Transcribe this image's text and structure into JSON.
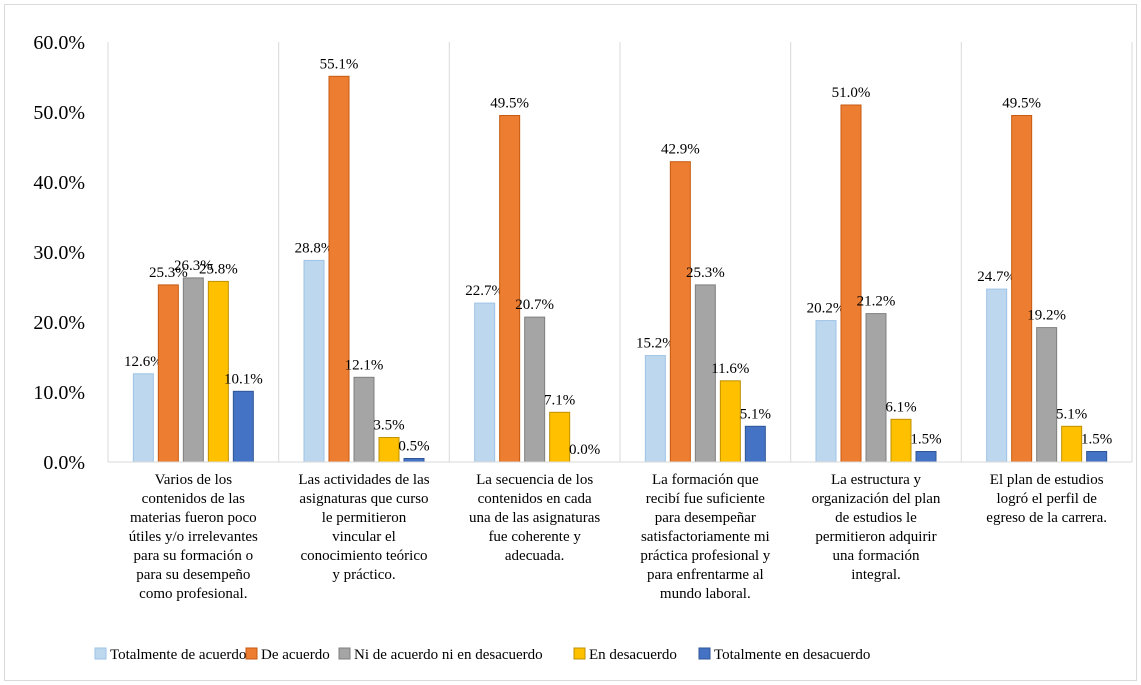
{
  "chart_data": {
    "type": "bar",
    "categories": [
      [
        "Varios de  los",
        "contenidos de las",
        "materias fueron poco",
        "útiles y/o irrelevantes",
        "para su formación o",
        "para su desempeño",
        "como profesional."
      ],
      [
        "Las actividades de las",
        "asignaturas que curso",
        "le permitieron",
        "vincular el",
        "conocimiento teórico",
        "y práctico."
      ],
      [
        "La secuencia de los",
        "contenidos en cada",
        "una de las asignaturas",
        "fue coherente y",
        "adecuada."
      ],
      [
        "La formación que",
        "recibí fue suficiente",
        "para desempeñar",
        "satisfactoriamente mi",
        "práctica profesional y",
        "para enfrentarme al",
        "mundo laboral."
      ],
      [
        "La estructura y",
        "organización del plan",
        "de estudios le",
        "permitieron adquirir",
        "una formación",
        "integral."
      ],
      [
        "El plan de estudios",
        "logró el perfil de",
        "egreso de la carrera."
      ]
    ],
    "series": [
      {
        "name": "Totalmente de acuerdo",
        "color": "#bdd7ee",
        "stroke": "#9dc3e6",
        "values": [
          12.6,
          28.8,
          22.7,
          15.2,
          20.2,
          24.7
        ]
      },
      {
        "name": "De acuerdo",
        "color": "#ed7d31",
        "stroke": "#c55a11",
        "values": [
          25.3,
          55.1,
          49.5,
          42.9,
          51.0,
          49.5
        ]
      },
      {
        "name": "Ni de acuerdo ni en desacuerdo",
        "color": "#a5a5a5",
        "stroke": "#7f7f7f",
        "values": [
          26.3,
          12.1,
          20.7,
          25.3,
          21.2,
          19.2
        ]
      },
      {
        "name": "En desacuerdo",
        "color": "#ffc000",
        "stroke": "#bf9000",
        "values": [
          25.8,
          3.5,
          7.1,
          11.6,
          6.1,
          5.1
        ]
      },
      {
        "name": "Totalmente en desacuerdo",
        "color": "#4472c4",
        "stroke": "#2f5597",
        "values": [
          10.1,
          0.5,
          0.0,
          5.1,
          1.5,
          1.5
        ]
      }
    ],
    "ylim": [
      0,
      60
    ],
    "yticks": [
      0,
      10,
      20,
      30,
      40,
      50,
      60
    ],
    "value_format": "percent-1dp",
    "grid": "vertical-category-separators",
    "legend_position": "bottom",
    "title": "",
    "xlabel": "",
    "ylabel": ""
  }
}
